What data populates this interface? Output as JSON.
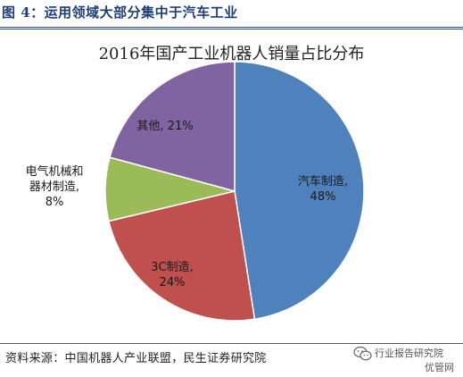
{
  "figure_caption": "图 4：运用领域大部分集中于汽车工业",
  "source_note": "资料来源：中国机器人产业联盟，民生证券研究院",
  "watermark": {
    "icon": "wechat-icon",
    "line1": "行业报告研究院",
    "line2": "优管网"
  },
  "chart_data": {
    "type": "pie",
    "title": "2016年国产工业机器人销量占比分布",
    "slices": [
      {
        "label": "汽车制造,",
        "label_lines": [
          "汽车制造,",
          "48%"
        ],
        "value": 48,
        "color": "#4f81bd"
      },
      {
        "label": "3C制造,",
        "label_lines": [
          "3C制造,",
          "24%"
        ],
        "value": 24,
        "color": "#c0504d"
      },
      {
        "label": "电气机械和器材制造,",
        "label_lines": [
          "电气机械和",
          "器材制造,",
          "8%"
        ],
        "value": 8,
        "color": "#9bbb59"
      },
      {
        "label": "其他,",
        "label_lines": [
          "其他, 21%"
        ],
        "value": 21,
        "color": "#8064a2"
      }
    ],
    "start_angle_deg": 0,
    "direction": "clockwise",
    "legend": "none",
    "labels": "inside"
  }
}
